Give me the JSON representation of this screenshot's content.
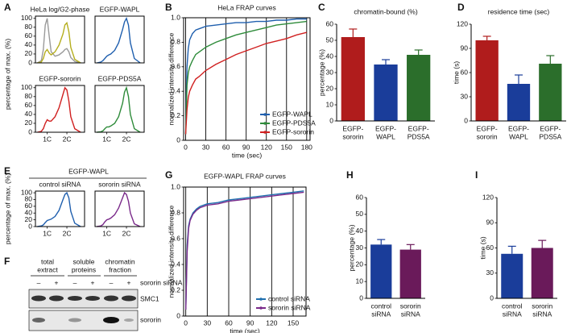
{
  "chart_data": [
    {
      "type": "line",
      "panel": "A",
      "title": "HeLa log/G2-phase",
      "y_label": "percentage of max. (%)",
      "x": [
        0.5,
        0.7,
        0.8,
        0.9,
        1.0,
        1.1,
        1.2,
        1.4,
        1.6,
        1.8,
        1.9,
        2.0,
        2.1,
        2.2,
        2.4,
        2.7
      ],
      "xlim": [
        0.4,
        2.9
      ],
      "ylim": [
        0,
        105
      ],
      "yticks": [
        0,
        20,
        40,
        60,
        80,
        100
      ],
      "series": [
        {
          "color": "#9a9a9a",
          "values": [
            0,
            5,
            30,
            85,
            100,
            60,
            25,
            15,
            18,
            25,
            30,
            32,
            25,
            12,
            3,
            0
          ]
        },
        {
          "color": "#b5ae1e",
          "values": [
            0,
            2,
            10,
            25,
            30,
            22,
            18,
            25,
            40,
            65,
            85,
            90,
            70,
            35,
            8,
            0
          ]
        }
      ]
    },
    {
      "type": "line",
      "title": "EGFP-WAPL",
      "x": [
        0.5,
        0.7,
        0.8,
        0.9,
        1.0,
        1.1,
        1.2,
        1.4,
        1.6,
        1.8,
        1.9,
        2.0,
        2.1,
        2.2,
        2.4,
        2.7
      ],
      "xlim": [
        0.4,
        2.9
      ],
      "ylim": [
        0,
        105
      ],
      "series": [
        {
          "color": "#1f5fae",
          "values": [
            0,
            2,
            5,
            10,
            15,
            18,
            20,
            28,
            45,
            75,
            92,
            100,
            85,
            45,
            10,
            0
          ]
        }
      ]
    },
    {
      "type": "line",
      "title": "EGFP-sororin",
      "x": [
        0.5,
        0.7,
        0.8,
        0.9,
        1.0,
        1.1,
        1.2,
        1.4,
        1.6,
        1.8,
        1.9,
        2.0,
        2.1,
        2.2,
        2.4,
        2.7
      ],
      "xlim": [
        0.4,
        2.9
      ],
      "ylim": [
        0,
        105
      ],
      "yticks": [
        0,
        20,
        40,
        60,
        80,
        100
      ],
      "xticks": [
        {
          "value": 1,
          "label": "1C"
        },
        {
          "value": 2,
          "label": "2C"
        }
      ],
      "series": [
        {
          "color": "#d02020",
          "values": [
            0,
            2,
            8,
            20,
            28,
            25,
            25,
            35,
            55,
            85,
            100,
            95,
            70,
            35,
            8,
            0
          ]
        }
      ]
    },
    {
      "type": "line",
      "title": "EGFP-PDS5A",
      "x": [
        0.5,
        0.7,
        0.8,
        0.9,
        1.0,
        1.1,
        1.2,
        1.4,
        1.6,
        1.8,
        1.9,
        2.0,
        2.1,
        2.2,
        2.4,
        2.7
      ],
      "xlim": [
        0.4,
        2.9
      ],
      "ylim": [
        0,
        105
      ],
      "xticks": [
        {
          "value": 1,
          "label": "1C"
        },
        {
          "value": 2,
          "label": "2C"
        }
      ],
      "series": [
        {
          "color": "#2e8b3a",
          "values": [
            0,
            1,
            3,
            8,
            12,
            12,
            14,
            20,
            35,
            65,
            90,
            100,
            80,
            40,
            8,
            0
          ]
        }
      ]
    },
    {
      "type": "line",
      "panel": "B",
      "title": "HeLa FRAP curves",
      "x_label": "time (sec)",
      "y_label": "normalized intensity difference",
      "x": [
        0,
        2,
        4,
        6,
        10,
        15,
        20,
        30,
        45,
        60,
        75,
        90,
        105,
        120,
        135,
        150,
        165,
        180
      ],
      "xlim": [
        -3,
        185
      ],
      "ylim": [
        0,
        1
      ],
      "xticks": [
        0,
        30,
        60,
        90,
        120,
        150,
        180
      ],
      "yticks": [
        0,
        0.2,
        0.4,
        0.6,
        0.8,
        {
          "value": 1,
          "label": "1.0"
        }
      ],
      "grid": true,
      "legend": "lower right",
      "series": [
        {
          "name": "EGFP-WAPL",
          "color": "#1f5fae",
          "values": [
            0.05,
            0.6,
            0.75,
            0.82,
            0.87,
            0.9,
            0.91,
            0.93,
            0.94,
            0.95,
            0.96,
            0.96,
            0.97,
            0.97,
            0.98,
            0.98,
            0.99,
            0.99
          ]
        },
        {
          "name": "EGFP-PDS5A",
          "color": "#2e8b3a",
          "values": [
            0.05,
            0.45,
            0.55,
            0.6,
            0.65,
            0.7,
            0.72,
            0.76,
            0.8,
            0.83,
            0.86,
            0.88,
            0.9,
            0.92,
            0.94,
            0.95,
            0.96,
            0.97
          ]
        },
        {
          "name": "EGFP-sororin",
          "color": "#d02020",
          "values": [
            0.05,
            0.25,
            0.35,
            0.4,
            0.45,
            0.5,
            0.52,
            0.57,
            0.62,
            0.66,
            0.7,
            0.73,
            0.76,
            0.79,
            0.81,
            0.83,
            0.86,
            0.88
          ]
        }
      ]
    },
    {
      "type": "bar",
      "panel": "C",
      "title": "chromatin-bound (%)",
      "y_label": "percentage (%)",
      "categories": [
        [
          "EGFP-",
          "sororin"
        ],
        [
          "EGFP-",
          "WAPL"
        ],
        [
          "EGFP-",
          "PDS5A"
        ]
      ],
      "values": [
        52,
        35,
        41
      ],
      "errors": [
        5,
        3,
        3
      ],
      "colors": [
        "#b01c1c",
        "#1a3d9a",
        "#2b6e2b"
      ],
      "ylim": [
        0,
        60
      ],
      "yticks": [
        0,
        10,
        20,
        30,
        40,
        50,
        60
      ]
    },
    {
      "type": "bar",
      "panel": "D",
      "title": "residence time (sec)",
      "y_label": "time (s)",
      "categories": [
        [
          "EGFP-",
          "sororin"
        ],
        [
          "EGFP-",
          "WAPL"
        ],
        [
          "EGFP-",
          "PDS5A"
        ]
      ],
      "values": [
        100,
        46,
        71
      ],
      "errors": [
        5,
        11,
        10
      ],
      "colors": [
        "#b01c1c",
        "#1a3d9a",
        "#2b6e2b"
      ],
      "ylim": [
        0,
        120
      ],
      "yticks": [
        0,
        30,
        60,
        90,
        120
      ]
    },
    {
      "type": "line",
      "panel": "E",
      "group_title": "EGFP-WAPL",
      "title": "control siRNA",
      "y_label": "percentage of max. (%)",
      "x": [
        0.5,
        0.7,
        0.8,
        0.9,
        1.0,
        1.1,
        1.2,
        1.4,
        1.6,
        1.8,
        1.9,
        2.0,
        2.1,
        2.2,
        2.4,
        2.7
      ],
      "xlim": [
        0.4,
        2.9
      ],
      "ylim": [
        0,
        105
      ],
      "yticks": [
        0,
        20,
        40,
        60,
        80,
        100
      ],
      "xticks": [
        {
          "value": 1,
          "label": "1C"
        },
        {
          "value": 2,
          "label": "2C"
        }
      ],
      "series": [
        {
          "color": "#1f5fae",
          "values": [
            0,
            2,
            5,
            12,
            18,
            20,
            22,
            30,
            48,
            80,
            95,
            100,
            85,
            45,
            10,
            0
          ]
        }
      ]
    },
    {
      "type": "line",
      "title": "sororin siRNA",
      "x": [
        0.5,
        0.7,
        0.8,
        0.9,
        1.0,
        1.1,
        1.2,
        1.4,
        1.6,
        1.8,
        1.9,
        2.0,
        2.1,
        2.2,
        2.4,
        2.7
      ],
      "xlim": [
        0.4,
        2.9
      ],
      "ylim": [
        0,
        105
      ],
      "xticks": [
        {
          "value": 1,
          "label": "1C"
        },
        {
          "value": 2,
          "label": "2C"
        }
      ],
      "series": [
        {
          "color": "#7a2a8a",
          "values": [
            0,
            2,
            6,
            14,
            20,
            22,
            25,
            35,
            55,
            85,
            100,
            95,
            75,
            40,
            8,
            0
          ]
        }
      ]
    },
    {
      "type": "line",
      "panel": "G",
      "title": "EGFP-WAPL FRAP curves",
      "x_label": "time (sec)",
      "y_label": "normalized intensity difference",
      "x": [
        0,
        2,
        4,
        6,
        10,
        15,
        20,
        30,
        45,
        60,
        75,
        90,
        105,
        120,
        135,
        150,
        165
      ],
      "xlim": [
        -3,
        168
      ],
      "ylim": [
        0,
        1
      ],
      "xticks": [
        0,
        30,
        60,
        90,
        120,
        150
      ],
      "yticks": [
        0,
        0.2,
        0.4,
        0.6,
        0.8,
        {
          "value": 1,
          "label": "1.0"
        }
      ],
      "grid": true,
      "legend": "lower right",
      "series": [
        {
          "name": "control siRNA",
          "color": "#1f6fae",
          "values": [
            0.05,
            0.55,
            0.7,
            0.75,
            0.8,
            0.83,
            0.85,
            0.87,
            0.88,
            0.9,
            0.91,
            0.92,
            0.93,
            0.94,
            0.95,
            0.96,
            0.97
          ]
        },
        {
          "name": "sororin siRNA",
          "color": "#7a2a8a",
          "values": [
            0.05,
            0.5,
            0.68,
            0.74,
            0.79,
            0.82,
            0.84,
            0.86,
            0.87,
            0.89,
            0.9,
            0.91,
            0.92,
            0.93,
            0.94,
            0.95,
            0.96
          ]
        }
      ]
    },
    {
      "type": "bar",
      "panel": "H",
      "y_label": "percentage (%)",
      "categories": [
        [
          "control",
          "siRNA"
        ],
        [
          "sororin",
          "siRNA"
        ]
      ],
      "values": [
        32,
        29
      ],
      "errors": [
        3,
        3
      ],
      "colors": [
        "#1a3d9a",
        "#6a1a5a"
      ],
      "ylim": [
        0,
        60
      ],
      "yticks": [
        0,
        10,
        20,
        30,
        40,
        50,
        60
      ]
    },
    {
      "type": "bar",
      "panel": "I",
      "y_label": "time (s)",
      "categories": [
        [
          "control",
          "siRNA"
        ],
        [
          "sororin",
          "siRNA"
        ]
      ],
      "values": [
        53,
        60
      ],
      "errors": [
        9,
        9
      ],
      "colors": [
        "#1a3d9a",
        "#6a1a5a"
      ],
      "ylim": [
        0,
        120
      ],
      "yticks": [
        0,
        30,
        60,
        90,
        120
      ]
    }
  ],
  "blot": {
    "panel": "F",
    "fractions": [
      [
        "total",
        "extract"
      ],
      [
        "soluble",
        "proteins"
      ],
      [
        "chromatin",
        "fraction"
      ]
    ],
    "signs": [
      "–",
      "+",
      "–",
      "+",
      "–",
      "+"
    ],
    "condition": "sororin siRNA",
    "bands": [
      "SMC1",
      "sororin"
    ]
  }
}
